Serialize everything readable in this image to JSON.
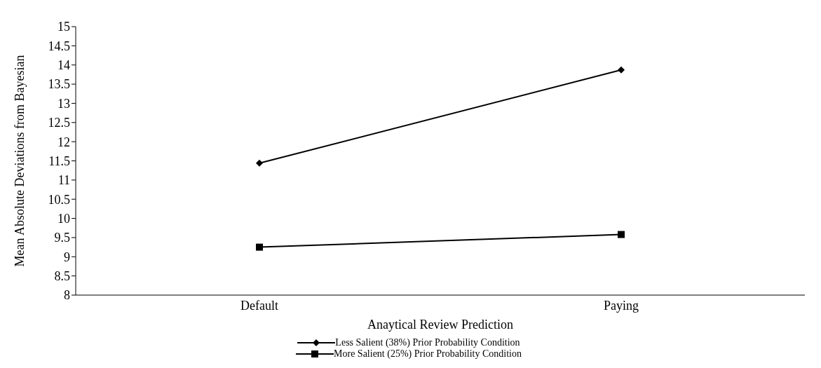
{
  "chart_data": {
    "type": "line",
    "xlabel": "Anaytical Review Prediction",
    "ylabel": "Mean Absolute Deviations from Bayesian",
    "categories": [
      "Default",
      "Paying"
    ],
    "series": [
      {
        "name": "Less Salient (38%) Prior Probability Condition",
        "color": "#000000",
        "values": [
          11.44,
          13.87
        ],
        "marker": "diamond"
      },
      {
        "name": "More Salient (25%) Prior Probability Condition",
        "color": "#000000",
        "values": [
          9.25,
          9.58
        ],
        "marker": "square"
      }
    ],
    "ylim": [
      8,
      15
    ],
    "yticks": [
      8,
      8.5,
      9,
      9.5,
      10,
      10.5,
      11,
      11.5,
      12,
      12.5,
      13,
      13.5,
      14,
      14.5,
      15
    ],
    "grid": false,
    "legend": "bottom",
    "line_style": "solid"
  }
}
